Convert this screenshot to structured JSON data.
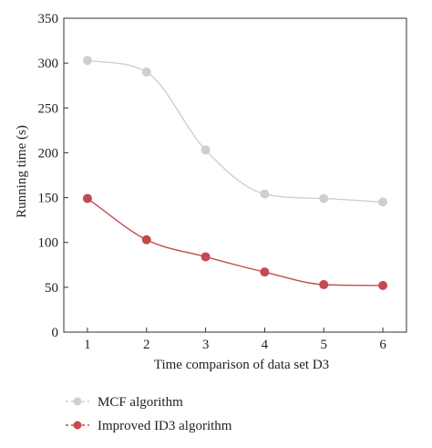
{
  "chart_data": {
    "type": "line",
    "title": "",
    "xlabel": "Time comparison of data set D3",
    "ylabel": "Running time (s)",
    "x": [
      1,
      2,
      3,
      4,
      5,
      6
    ],
    "xlim": [
      0.6,
      6.4
    ],
    "ylim": [
      0,
      350
    ],
    "yticks": [
      0,
      50,
      100,
      150,
      200,
      250,
      300,
      350
    ],
    "grid": false,
    "legend_position": "bottom-left",
    "series": [
      {
        "name": "MCF algorithm",
        "values": [
          303,
          290,
          203,
          154,
          149,
          145
        ],
        "color": "#cfcfcf"
      },
      {
        "name": "Improved ID3 algorithm",
        "values": [
          149,
          103,
          84,
          67,
          53,
          52
        ],
        "color": "#c24b50"
      }
    ]
  }
}
